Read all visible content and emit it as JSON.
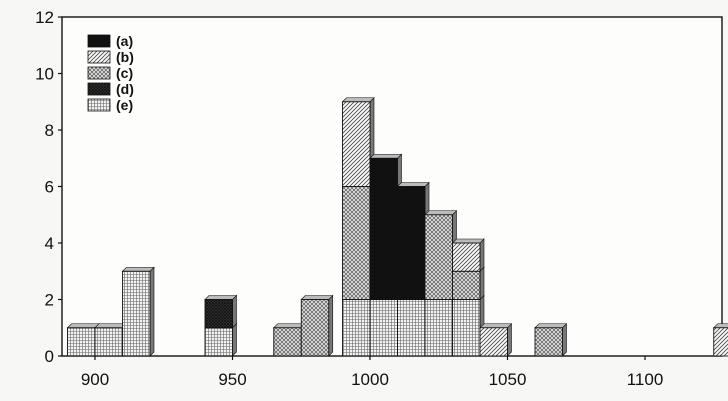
{
  "chart_data": {
    "type": "bar",
    "subtype": "stacked-histogram",
    "title": "",
    "xlabel": "",
    "ylabel": "",
    "xlim": [
      888,
      1128
    ],
    "ylim": [
      0,
      12
    ],
    "x_ticks": [
      900,
      950,
      1000,
      1050,
      1100
    ],
    "y_ticks": [
      0,
      2,
      4,
      6,
      8,
      10,
      12
    ],
    "bin_width": 10,
    "legend_position": "top-left",
    "series": [
      {
        "name": "(a)",
        "pattern": "solid",
        "color": "#111111",
        "bins": [
          {
            "x": 1000,
            "value": 5
          },
          {
            "x": 1010,
            "value": 4
          }
        ]
      },
      {
        "name": "(b)",
        "pattern": "diagonal-hatch",
        "color": "#555555",
        "bins": [
          {
            "x": 990,
            "value": 3
          },
          {
            "x": 1000,
            "value": 0
          },
          {
            "x": 1030,
            "value": 1
          },
          {
            "x": 1040,
            "value": 1
          },
          {
            "x": 1125,
            "value": 1
          }
        ]
      },
      {
        "name": "(c)",
        "pattern": "crosshatch",
        "color": "#666666",
        "bins": [
          {
            "x": 965,
            "value": 1
          },
          {
            "x": 975,
            "value": 2
          },
          {
            "x": 990,
            "value": 4
          },
          {
            "x": 1000,
            "value": 0
          },
          {
            "x": 1010,
            "value": 0
          },
          {
            "x": 1020,
            "value": 3
          },
          {
            "x": 1030,
            "value": 1
          },
          {
            "x": 1060,
            "value": 1
          }
        ]
      },
      {
        "name": "(d)",
        "pattern": "dense-crosshatch",
        "color": "#333333",
        "bins": [
          {
            "x": 940,
            "value": 1
          }
        ]
      },
      {
        "name": "(e)",
        "pattern": "grid",
        "color": "#444444",
        "bins": [
          {
            "x": 890,
            "value": 1
          },
          {
            "x": 900,
            "value": 1
          },
          {
            "x": 910,
            "value": 3
          },
          {
            "x": 940,
            "value": 1
          },
          {
            "x": 990,
            "value": 2
          },
          {
            "x": 1000,
            "value": 2
          },
          {
            "x": 1010,
            "value": 2
          },
          {
            "x": 1020,
            "value": 2
          },
          {
            "x": 1030,
            "value": 2
          }
        ]
      }
    ],
    "stack_order": [
      "(e)",
      "(c)",
      "(d)",
      "(a)",
      "(b)"
    ]
  }
}
